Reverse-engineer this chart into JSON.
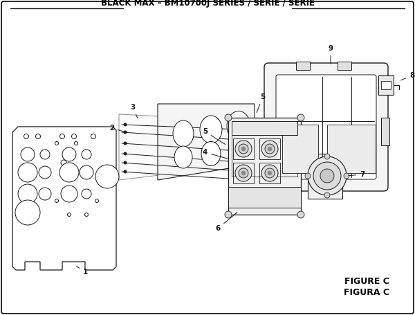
{
  "title": "BLACK MAX – BM10700J SERIES / SÉRIE / SERIE",
  "figure_label": "FIGURE C",
  "figure_label2": "FIGURA C",
  "bg_color": "#f2f2f2",
  "line_color": "#1a1a1a",
  "title_fontsize": 8.5,
  "fig_label_fontsize": 9
}
